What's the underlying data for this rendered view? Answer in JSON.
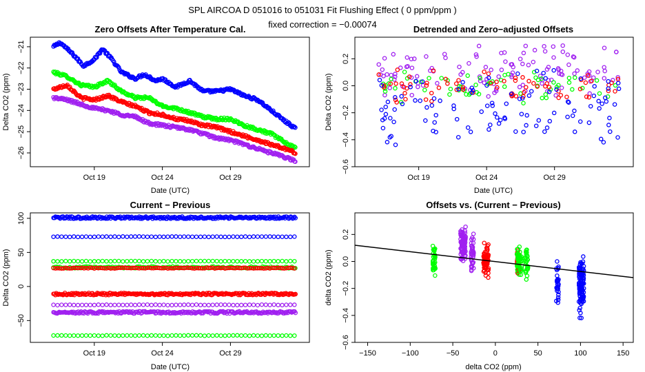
{
  "header": {
    "title": "SPL   AIRCOA D   051016 to 051031   Fit Flushing Effect ( 0 ppm/ppm )",
    "subtitle": "fixed correction = −0.00074"
  },
  "colors": {
    "blue": "#0000ff",
    "green": "#00ff00",
    "red": "#ff0000",
    "purple": "#a020f0",
    "fit_line": "#000000"
  },
  "chart_data": [
    {
      "id": "zero",
      "type": "scatter",
      "title": "Zero Offsets After Temperature Cal.",
      "xlabel": "Date (UTC)",
      "ylabel": "Delta CO2 (ppm)",
      "xlim": [
        14.3,
        34.8
      ],
      "ylim": [
        -26.65,
        -20.55
      ],
      "xticks": [
        19,
        24,
        29
      ],
      "xtick_labels": [
        "Oct 19",
        "Oct 24",
        "Oct 29"
      ],
      "yticks": [
        -26,
        -25,
        -24,
        -23,
        -22,
        -21
      ],
      "ytick_labels": [
        "−26",
        "−25",
        "−24",
        "−23",
        "−22",
        "−21"
      ],
      "x_range": [
        16.0,
        33.8
      ],
      "series": [
        {
          "name": "blue",
          "color": "#0000ff",
          "noise": 0.06,
          "x": [
            16.0,
            16.5,
            17.5,
            18.2,
            19.0,
            19.6,
            20.3,
            21.0,
            22.0,
            22.7,
            23.5,
            24.0,
            25.0,
            26.0,
            27.0,
            28.0,
            29.0,
            30.0,
            31.0,
            32.0,
            33.0,
            33.8
          ],
          "y": [
            -21.0,
            -20.8,
            -21.4,
            -21.9,
            -21.6,
            -21.1,
            -21.6,
            -22.2,
            -22.5,
            -22.3,
            -22.6,
            -22.5,
            -22.9,
            -22.6,
            -23.1,
            -23.1,
            -23.0,
            -23.3,
            -23.5,
            -24.0,
            -24.5,
            -24.85
          ]
        },
        {
          "name": "green",
          "color": "#00ff00",
          "noise": 0.06,
          "x": [
            16.0,
            17.0,
            18.0,
            19.0,
            20.0,
            21.0,
            22.0,
            23.0,
            24.0,
            25.0,
            26.0,
            27.0,
            28.0,
            29.0,
            30.0,
            31.0,
            32.0,
            33.0,
            33.8
          ],
          "y": [
            -22.2,
            -22.4,
            -22.8,
            -22.9,
            -22.6,
            -23.1,
            -23.4,
            -23.4,
            -23.8,
            -23.9,
            -24.1,
            -24.3,
            -24.4,
            -24.4,
            -24.7,
            -24.9,
            -25.1,
            -25.5,
            -25.8
          ]
        },
        {
          "name": "red",
          "color": "#ff0000",
          "noise": 0.06,
          "x": [
            16.0,
            17.0,
            18.0,
            19.0,
            20.0,
            21.0,
            22.0,
            23.0,
            24.0,
            25.0,
            26.0,
            27.0,
            28.0,
            29.0,
            30.0,
            31.0,
            32.0,
            33.0,
            33.8
          ],
          "y": [
            -23.0,
            -22.8,
            -23.4,
            -23.5,
            -23.3,
            -23.6,
            -23.8,
            -24.1,
            -24.2,
            -24.4,
            -24.5,
            -24.7,
            -24.8,
            -25.0,
            -25.2,
            -25.4,
            -25.6,
            -25.8,
            -26.0
          ]
        },
        {
          "name": "purple",
          "color": "#a020f0",
          "noise": 0.06,
          "x": [
            16.0,
            17.0,
            18.0,
            19.0,
            20.0,
            21.0,
            22.0,
            23.0,
            24.0,
            25.0,
            26.0,
            27.0,
            28.0,
            29.0,
            30.0,
            31.0,
            32.0,
            33.0,
            33.8
          ],
          "y": [
            -23.4,
            -23.5,
            -23.7,
            -23.9,
            -24.0,
            -24.2,
            -24.3,
            -24.6,
            -24.7,
            -24.8,
            -24.9,
            -25.1,
            -25.3,
            -25.4,
            -25.6,
            -25.8,
            -26.0,
            -26.2,
            -26.4
          ]
        }
      ]
    },
    {
      "id": "detrended",
      "type": "scatter",
      "title": "Detrended and Zero−adjusted Offsets",
      "xlabel": "Date (UTC)",
      "ylabel": "Delta CO2 (ppm)",
      "xlim": [
        14.3,
        34.8
      ],
      "ylim": [
        -0.6,
        0.36
      ],
      "xticks": [
        19,
        24,
        29
      ],
      "xtick_labels": [
        "Oct 19",
        "Oct 24",
        "Oct 29"
      ],
      "yticks": [
        -0.6,
        -0.4,
        -0.2,
        0.0,
        0.2
      ],
      "ytick_labels": [
        "−0.6",
        "−0.4",
        "−0.2",
        "0.0",
        "0.2"
      ],
      "x_range": [
        16.0,
        33.8
      ],
      "series": [
        {
          "name": "purple",
          "color": "#a020f0",
          "mean": 0.1,
          "spread": 0.22,
          "count": 120
        },
        {
          "name": "green",
          "color": "#00ff00",
          "mean": 0.0,
          "spread": 0.14,
          "count": 60
        },
        {
          "name": "red",
          "color": "#ff0000",
          "mean": 0.0,
          "spread": 0.13,
          "count": 70
        },
        {
          "name": "blue",
          "color": "#0000ff",
          "mean": -0.17,
          "spread": 0.34,
          "count": 110
        }
      ]
    },
    {
      "id": "current_previous",
      "type": "scatter",
      "title": "Current − Previous",
      "xlabel": "Date (UTC)",
      "ylabel": "Delta CO2 (ppm)",
      "xlim": [
        14.3,
        34.8
      ],
      "ylim": [
        -82,
        108
      ],
      "xticks": [
        19,
        24,
        29
      ],
      "xtick_labels": [
        "Oct 19",
        "Oct 24",
        "Oct 29"
      ],
      "yticks": [
        -50,
        0,
        50,
        100
      ],
      "ytick_labels": [
        "−50",
        "0",
        "50",
        "100"
      ],
      "x_range": [
        16.0,
        33.8
      ],
      "bands": [
        {
          "color": "#0000ff",
          "level": 101,
          "jitter": 1.6,
          "spacing": 0.07
        },
        {
          "color": "#0000ff",
          "level": 73,
          "jitter": 0.3,
          "spacing": 0.3
        },
        {
          "color": "#00ff00",
          "level": 37,
          "jitter": 0.3,
          "spacing": 0.3
        },
        {
          "color": "#00ff00",
          "level": 28,
          "jitter": 1.3,
          "spacing": 0.12
        },
        {
          "color": "#ff0000",
          "level": 27,
          "jitter": 0.6,
          "spacing": 0.15
        },
        {
          "color": "#ff0000",
          "level": -11,
          "jitter": 1.6,
          "spacing": 0.07
        },
        {
          "color": "#a020f0",
          "level": -27,
          "jitter": 0.4,
          "spacing": 0.3
        },
        {
          "color": "#a020f0",
          "level": -38,
          "jitter": 1.6,
          "spacing": 0.07
        },
        {
          "color": "#00ff00",
          "level": -72,
          "jitter": 0.3,
          "spacing": 0.3
        }
      ]
    },
    {
      "id": "offsets_vs",
      "type": "scatter",
      "title": "Offsets vs. (Current − Previous)",
      "xlabel": "delta CO2 (ppm)",
      "ylabel": "delta CO2 (ppm)",
      "xlim": [
        -165,
        162
      ],
      "ylim": [
        -0.6,
        0.36
      ],
      "xticks": [
        -150,
        -100,
        -50,
        0,
        50,
        100,
        150
      ],
      "xtick_labels": [
        "−150",
        "−100",
        "−50",
        "0",
        "50",
        "100",
        "150"
      ],
      "yticks": [
        -0.6,
        -0.4,
        -0.2,
        0.0,
        0.2
      ],
      "ytick_labels": [
        "−0.6",
        "−0.4",
        "−0.2",
        "0.0",
        "0.2"
      ],
      "fit_line": {
        "x": [
          -165,
          162
        ],
        "y": [
          0.12,
          -0.12
        ]
      },
      "clusters": [
        {
          "color": "#00ff00",
          "x": -72,
          "xjit": 1.5,
          "mean": 0.02,
          "spread": 0.09,
          "count": 40
        },
        {
          "color": "#a020f0",
          "x": -38,
          "xjit": 3.0,
          "mean": 0.12,
          "spread": 0.09,
          "count": 90
        },
        {
          "color": "#a020f0",
          "x": -27,
          "xjit": 1.5,
          "mean": 0.06,
          "spread": 0.1,
          "count": 40
        },
        {
          "color": "#ff0000",
          "x": -11,
          "xjit": 3.0,
          "mean": 0.0,
          "spread": 0.08,
          "count": 90
        },
        {
          "color": "#ff0000",
          "x": 27,
          "xjit": 1.5,
          "mean": 0.0,
          "spread": 0.06,
          "count": 40
        },
        {
          "color": "#00ff00",
          "x": 28,
          "xjit": 3.0,
          "mean": 0.0,
          "spread": 0.07,
          "count": 50
        },
        {
          "color": "#00ff00",
          "x": 37,
          "xjit": 1.5,
          "mean": 0.0,
          "spread": 0.08,
          "count": 30
        },
        {
          "color": "#0000ff",
          "x": 73,
          "xjit": 1.5,
          "mean": -0.15,
          "spread": 0.12,
          "count": 30
        },
        {
          "color": "#0000ff",
          "x": 101,
          "xjit": 3.0,
          "mean": -0.18,
          "spread": 0.14,
          "count": 110
        }
      ]
    }
  ]
}
